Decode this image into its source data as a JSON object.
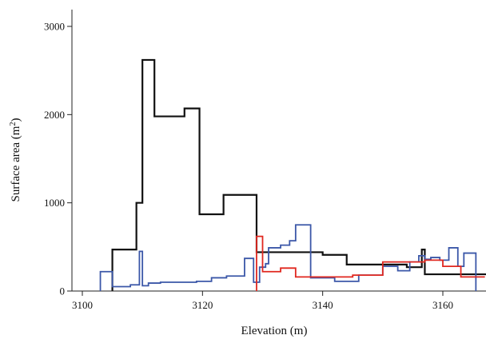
{
  "chart_data": {
    "type": "line",
    "step": true,
    "title": "",
    "xlabel": "Elevation (m)",
    "ylabel_main": "Surface area (m",
    "ylabel_sup": "2",
    "ylabel_tail": ")",
    "xlim": [
      3100,
      3173
    ],
    "ylim": [
      0,
      3000
    ],
    "xticks": [
      3100,
      3120,
      3140,
      3160
    ],
    "yticks": [
      0,
      1000,
      2000,
      3000
    ],
    "grid": false,
    "legend": "none",
    "series": [
      {
        "color": "#111111",
        "x": [
          3105,
          3109,
          3109.5,
          3110,
          3112,
          3114.5,
          3117,
          3119.5,
          3123.5,
          3126.5,
          3129,
          3131,
          3134,
          3137,
          3140,
          3144,
          3150,
          3154,
          3156.5,
          3157,
          3160,
          3164,
          3169,
          3173
        ],
        "y": [
          470,
          1000,
          1000,
          2620,
          1980,
          1980,
          2070,
          870,
          1090,
          1090,
          440,
          440,
          440,
          440,
          410,
          300,
          300,
          270,
          470,
          190,
          190,
          190,
          130,
          130
        ]
      },
      {
        "color": "#3b57a8",
        "x": [
          3103,
          3105,
          3106,
          3108,
          3109.5,
          3110,
          3111,
          3113,
          3116,
          3119,
          3121.5,
          3124,
          3127,
          3128.5,
          3129.5,
          3130.5,
          3131,
          3133,
          3134.5,
          3135.5,
          3138,
          3142,
          3146,
          3150,
          3152.5,
          3154.5,
          3156,
          3157,
          3158,
          3159.5,
          3161,
          3162.5,
          3163.5,
          3165.5
        ],
        "y": [
          220,
          50,
          50,
          70,
          450,
          60,
          90,
          100,
          100,
          110,
          150,
          170,
          370,
          100,
          270,
          310,
          490,
          520,
          570,
          750,
          150,
          110,
          180,
          280,
          230,
          330,
          400,
          360,
          380,
          350,
          490,
          280,
          430,
          0
        ]
      },
      {
        "color": "#e0271f",
        "x": [
          3129,
          3130,
          3133,
          3135.5,
          3140,
          3145,
          3150,
          3154,
          3157,
          3160,
          3161.5,
          3163,
          3167
        ],
        "y": [
          620,
          220,
          260,
          160,
          160,
          180,
          330,
          330,
          350,
          280,
          280,
          160,
          160
        ]
      }
    ]
  }
}
